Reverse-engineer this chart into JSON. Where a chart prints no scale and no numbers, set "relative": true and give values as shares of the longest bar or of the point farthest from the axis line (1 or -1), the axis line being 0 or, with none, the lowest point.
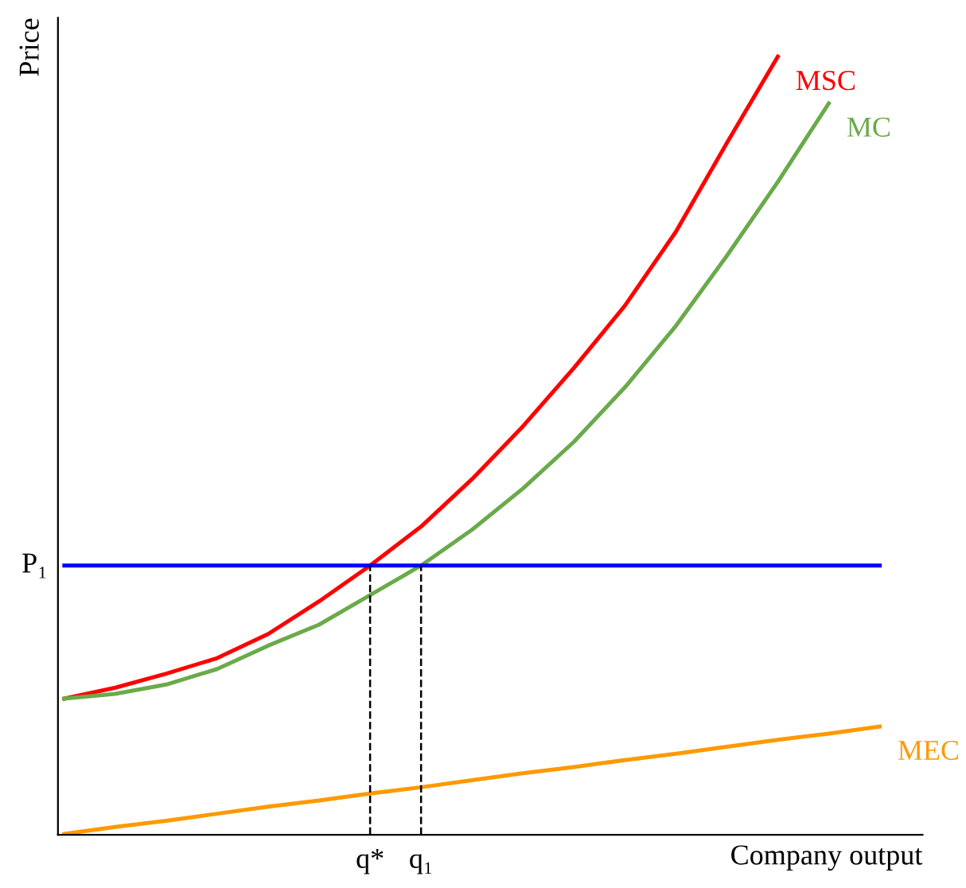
{
  "chart_data": {
    "type": "line",
    "relative": true,
    "xlabel": "Company output",
    "ylabel": "Price",
    "tick_labels": "x",
    "legend": false,
    "marker": "none",
    "line_style": "solid",
    "categories": [
      null,
      null,
      null,
      null,
      null,
      null,
      "q*",
      "q₁",
      null,
      null,
      null,
      null,
      null,
      null,
      null,
      null,
      null
    ],
    "series": [
      {
        "name": "MSC",
        "color": "#ff0000",
        "values": [
          0.175,
          0.189,
          0.207,
          0.227,
          0.258,
          0.3,
          0.346,
          0.396,
          0.457,
          0.525,
          0.6,
          0.68,
          0.775,
          0.889,
          1.0,
          null,
          null
        ]
      },
      {
        "name": "MC",
        "color": "#6aaa4a",
        "values": [
          0.175,
          0.181,
          0.193,
          0.213,
          0.243,
          0.27,
          0.308,
          0.346,
          0.392,
          0.445,
          0.505,
          0.575,
          0.654,
          0.744,
          0.839,
          0.94,
          null
        ]
      },
      {
        "name": "MEC",
        "color": "#ff9900",
        "values": [
          0.001,
          0.01,
          0.018,
          0.027,
          0.036,
          0.044,
          0.053,
          0.061,
          0.07,
          0.079,
          0.087,
          0.096,
          0.104,
          0.113,
          0.122,
          0.13,
          0.139
        ]
      }
    ],
    "ref_lines": [
      {
        "axis": "y",
        "value": 0.346,
        "label": "P₁",
        "color": "#0000ff",
        "line_style": "solid"
      },
      {
        "axis": "x",
        "value": "q*",
        "color": "#000000",
        "line_style": "dashed"
      },
      {
        "axis": "x",
        "value": "q₁",
        "color": "#000000",
        "line_style": "dashed"
      }
    ]
  }
}
